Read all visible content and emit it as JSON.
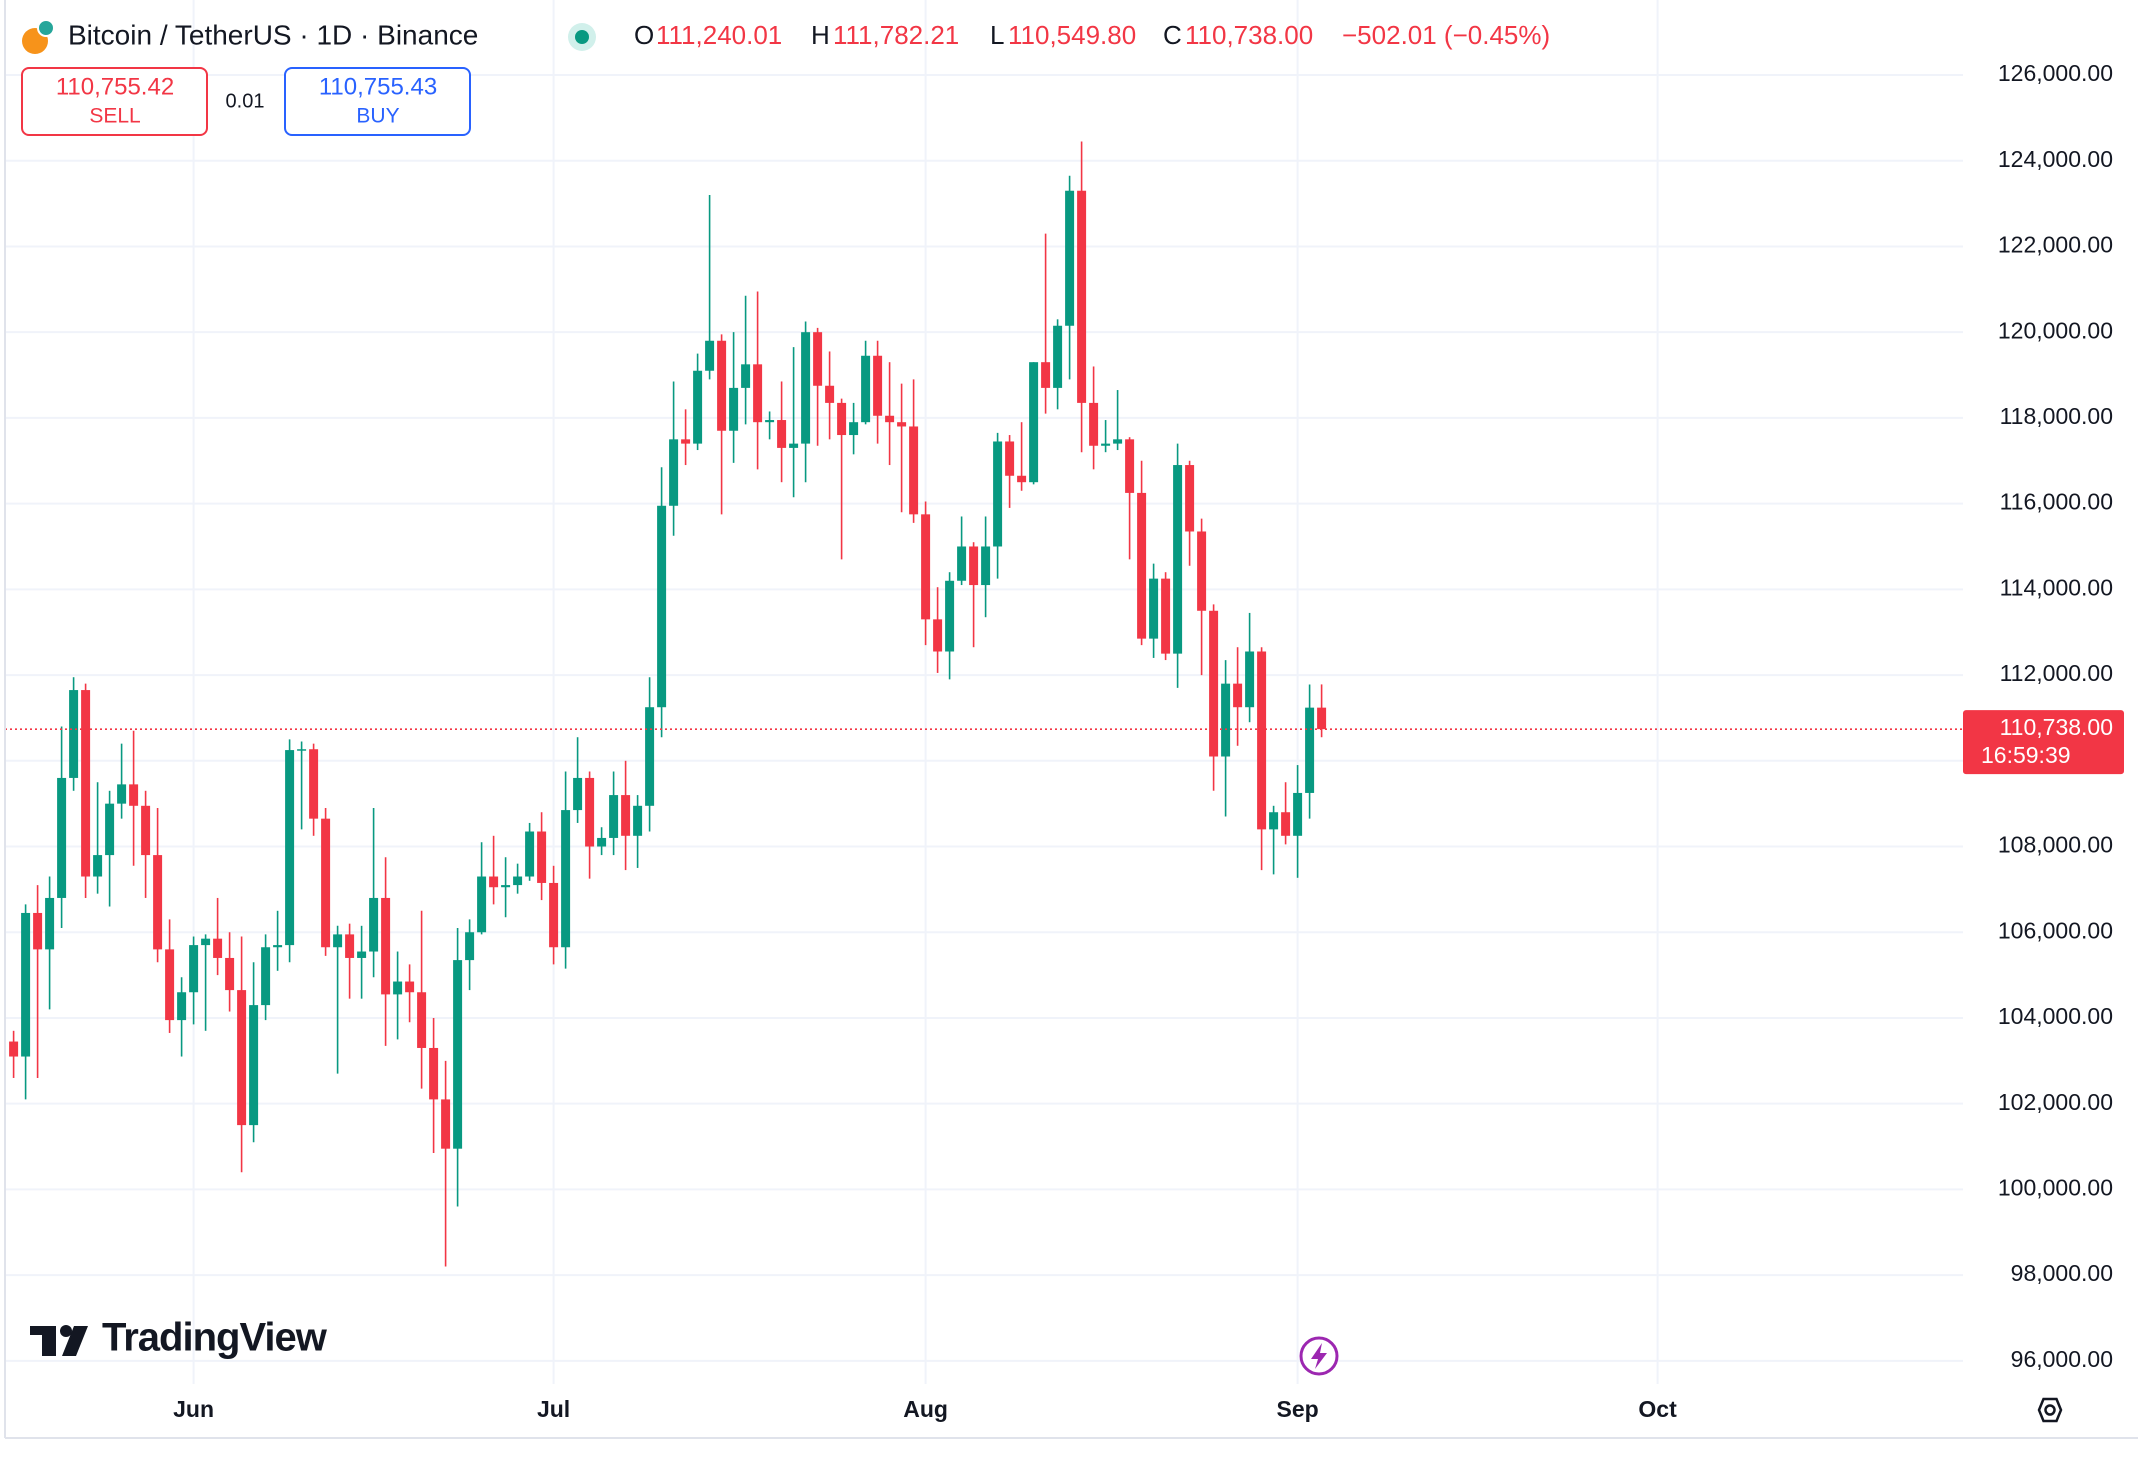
{
  "chart_data": {
    "type": "candlestick",
    "title": "Bitcoin / TetherUS · 1D · Binance",
    "ohlc_header": [
      {
        "label": "O",
        "value": "111,240.01"
      },
      {
        "label": "H",
        "value": "111,782.21"
      },
      {
        "label": "L",
        "value": "110,549.80"
      },
      {
        "label": "C",
        "value": "110,738.00"
      }
    ],
    "change": "−502.01 (−0.45%)",
    "sell": {
      "price": "110,755.42",
      "label": "SELL"
    },
    "spread": "0.01",
    "buy": {
      "price": "110,755.43",
      "label": "BUY"
    },
    "last_price": {
      "value": 110738,
      "label": "110,738.00"
    },
    "countdown": "16:59:39",
    "branding": "TradingView",
    "up_color": "#089981",
    "down_color": "#f23645",
    "grid": true,
    "categories": [
      null,
      null,
      null,
      null,
      null,
      null,
      null,
      null,
      null,
      null,
      null,
      null,
      null,
      null,
      null,
      "Jun",
      null,
      null,
      null,
      null,
      null,
      null,
      null,
      null,
      null,
      null,
      null,
      null,
      null,
      null,
      null,
      null,
      null,
      null,
      null,
      null,
      null,
      null,
      null,
      null,
      null,
      null,
      null,
      null,
      null,
      "Jul",
      null,
      null,
      null,
      null,
      null,
      null,
      null,
      null,
      null,
      null,
      null,
      null,
      null,
      null,
      null,
      null,
      null,
      null,
      null,
      null,
      null,
      null,
      null,
      null,
      null,
      null,
      null,
      null,
      null,
      null,
      "Aug",
      null,
      null,
      null,
      null,
      null,
      null,
      null,
      null,
      null,
      null,
      null,
      null,
      null,
      null,
      null,
      null,
      null,
      null,
      null,
      null,
      null,
      null,
      null,
      null,
      null,
      null,
      null,
      null,
      null,
      null,
      "Sep",
      null,
      null,
      null,
      null,
      null,
      null,
      null,
      null,
      null,
      null,
      null,
      null,
      null,
      null,
      null,
      null,
      null,
      null,
      null,
      null,
      null,
      null,
      null,
      null,
      null,
      null,
      null,
      null,
      null,
      "Oct",
      null,
      null,
      null,
      null,
      null,
      null,
      null,
      null,
      null,
      null,
      null,
      null,
      null,
      null,
      null,
      null,
      null,
      null,
      null,
      null,
      null,
      null,
      null,
      null,
      null
    ],
    "open": [
      103450,
      103100,
      106450,
      105600,
      106800,
      109600,
      111650,
      107300,
      107800,
      109000,
      109450,
      108950,
      107800,
      105600,
      103950,
      104600,
      105700,
      105850,
      105400,
      104650,
      101500,
      104300,
      105650,
      105700,
      110250,
      110270,
      108650,
      105650,
      105950,
      105400,
      105550,
      106800,
      104550,
      104850,
      104600,
      103300,
      102100,
      100950,
      105350,
      106000,
      107300,
      107050,
      107100,
      107300,
      108350,
      107150,
      105650,
      108850,
      109600,
      108000,
      108200,
      109200,
      108250,
      108950,
      111250,
      115950,
      117500,
      117400,
      119100,
      119800,
      117700,
      118700,
      119250,
      117900,
      117950,
      117300,
      117400,
      120000,
      118750,
      118350,
      117600,
      117900,
      119450,
      118050,
      117900,
      117800,
      115750,
      113300,
      112550,
      114200,
      115000,
      114100,
      115000,
      117450,
      116650,
      116500,
      119300,
      118700,
      120150,
      123300,
      118350,
      117350,
      117400,
      117500,
      116250,
      112850,
      114250,
      112500,
      116900,
      115350,
      113500,
      110100,
      111800,
      111250,
      112550,
      108400,
      108800,
      108250,
      109250,
      111240.01,
      null,
      null,
      null,
      null,
      null,
      null,
      null,
      null,
      null,
      null,
      null,
      null,
      null,
      null,
      null,
      null,
      null,
      null,
      null,
      null,
      null,
      null,
      null,
      null,
      null,
      null,
      null,
      null,
      null,
      null,
      null,
      null,
      null,
      null,
      null,
      null,
      null,
      null,
      null,
      null,
      null,
      null,
      null,
      null,
      null,
      null,
      null,
      null,
      null,
      null,
      null,
      null,
      null
    ],
    "high": [
      103700,
      106650,
      107100,
      107300,
      110800,
      111950,
      111800,
      109500,
      109300,
      110400,
      110700,
      109300,
      108900,
      106300,
      104950,
      105900,
      105950,
      106800,
      106000,
      105900,
      105300,
      105950,
      106500,
      110500,
      110450,
      110400,
      108900,
      106150,
      106200,
      106150,
      108900,
      107750,
      105550,
      105250,
      106500,
      104000,
      103000,
      106100,
      106300,
      108100,
      108250,
      107750,
      107600,
      108550,
      108800,
      107550,
      109750,
      110550,
      109750,
      108450,
      109750,
      110000,
      109200,
      111950,
      116850,
      118850,
      118200,
      119500,
      123200,
      119950,
      120000,
      120850,
      120950,
      118150,
      118850,
      119650,
      120250,
      120100,
      119550,
      118450,
      118350,
      119800,
      119800,
      119300,
      118800,
      118900,
      116050,
      114050,
      114400,
      115700,
      115100,
      115700,
      117650,
      117600,
      117900,
      119300,
      122300,
      120300,
      123650,
      124450,
      119200,
      117950,
      118650,
      117550,
      117000,
      114600,
      114400,
      117400,
      117000,
      115650,
      113650,
      112350,
      112650,
      113450,
      112650,
      108950,
      109500,
      109900,
      111780,
      111782.21,
      null,
      null,
      null,
      null,
      null,
      null,
      null,
      null,
      null,
      null,
      null,
      null,
      null,
      null,
      null,
      null,
      null,
      null,
      null,
      null,
      null,
      null,
      null,
      null,
      null,
      null,
      null,
      null,
      null,
      null,
      null,
      null,
      null,
      null,
      null,
      null,
      null,
      null,
      null,
      null,
      null,
      null,
      null,
      null,
      null,
      null,
      null,
      null,
      null,
      null,
      null,
      null,
      null
    ],
    "low": [
      102600,
      102100,
      102600,
      104200,
      106100,
      109300,
      106800,
      106900,
      106600,
      108650,
      107550,
      106800,
      105300,
      103650,
      103100,
      103850,
      103700,
      105000,
      104150,
      100400,
      101100,
      103950,
      105100,
      105300,
      108400,
      108250,
      105450,
      102700,
      104450,
      104450,
      104950,
      103350,
      103500,
      103900,
      102350,
      100850,
      98200,
      99600,
      104650,
      105950,
      106650,
      106350,
      106900,
      107200,
      106750,
      105250,
      105150,
      108550,
      107250,
      107800,
      107800,
      107450,
      107500,
      108350,
      110550,
      115250,
      116900,
      117250,
      118900,
      115750,
      116950,
      117850,
      116800,
      117500,
      116500,
      116150,
      116500,
      117350,
      117500,
      114700,
      117150,
      117850,
      117400,
      116900,
      115800,
      115550,
      112700,
      112050,
      111900,
      114100,
      112650,
      113350,
      114250,
      115900,
      116300,
      116450,
      118100,
      118200,
      118900,
      117200,
      116800,
      117200,
      117250,
      114700,
      112700,
      112400,
      112350,
      111700,
      114550,
      112000,
      109300,
      108700,
      110350,
      110900,
      107450,
      107350,
      108050,
      107270,
      108650,
      110549.8,
      null,
      null,
      null,
      null,
      null,
      null,
      null,
      null,
      null,
      null,
      null,
      null,
      null,
      null,
      null,
      null,
      null,
      null,
      null,
      null,
      null,
      null,
      null,
      null,
      null,
      null,
      null,
      null,
      null,
      null,
      null,
      null,
      null,
      null,
      null,
      null,
      null,
      null,
      null,
      null,
      null,
      null,
      null,
      null,
      null,
      null,
      null,
      null,
      null,
      null,
      null,
      null,
      null
    ],
    "close": [
      103100,
      106450,
      105600,
      106800,
      109600,
      111650,
      107300,
      107800,
      109000,
      109450,
      108950,
      107800,
      105600,
      103950,
      104600,
      105700,
      105850,
      105400,
      104650,
      101500,
      104300,
      105650,
      105700,
      110250,
      110270,
      108650,
      105650,
      105950,
      105400,
      105550,
      106800,
      104550,
      104850,
      104600,
      103300,
      102100,
      100950,
      105350,
      106000,
      107300,
      107050,
      107100,
      107300,
      108350,
      107150,
      105650,
      108850,
      109600,
      108000,
      108200,
      109200,
      108250,
      108950,
      111250,
      115950,
      117500,
      117400,
      119100,
      119800,
      117700,
      118700,
      119250,
      117900,
      117950,
      117300,
      117400,
      120000,
      118750,
      118350,
      117600,
      117900,
      119450,
      118050,
      117900,
      117800,
      115750,
      113300,
      112550,
      114200,
      115000,
      114100,
      115000,
      117450,
      116650,
      116500,
      119300,
      118700,
      120150,
      123300,
      118350,
      117350,
      117400,
      117500,
      116250,
      112850,
      114250,
      112500,
      116900,
      115350,
      113500,
      110100,
      111800,
      111250,
      112550,
      108400,
      108800,
      108250,
      109250,
      111240.01,
      110738,
      null,
      null,
      null,
      null,
      null,
      null,
      null,
      null,
      null,
      null,
      null,
      null,
      null,
      null,
      null,
      null,
      null,
      null,
      null,
      null,
      null,
      null,
      null,
      null,
      null,
      null,
      null,
      null,
      null,
      null,
      null,
      null,
      null,
      null,
      null,
      null,
      null,
      null,
      null,
      null,
      null,
      null,
      null,
      null,
      null,
      null,
      null,
      null,
      null,
      null,
      null,
      null,
      null
    ],
    "ylim": [
      95460,
      127750
    ],
    "yticks": [
      {
        "value": 96000,
        "label": "96,000.00"
      },
      {
        "value": 98000,
        "label": "98,000.00"
      },
      {
        "value": 100000,
        "label": "100,000.00"
      },
      {
        "value": 102000,
        "label": "102,000.00"
      },
      {
        "value": 104000,
        "label": "104,000.00"
      },
      {
        "value": 106000,
        "label": "106,000.00"
      },
      {
        "value": 108000,
        "label": "108,000.00"
      },
      {
        "value": 110000,
        "label": "110,000.00"
      },
      {
        "value": 112000,
        "label": "112,000.00"
      },
      {
        "value": 114000,
        "label": "114,000.00"
      },
      {
        "value": 116000,
        "label": "116,000.00"
      },
      {
        "value": 118000,
        "label": "118,000.00"
      },
      {
        "value": 120000,
        "label": "120,000.00"
      },
      {
        "value": 122000,
        "label": "122,000.00"
      },
      {
        "value": 124000,
        "label": "124,000.00"
      },
      {
        "value": 126000,
        "label": "126,000.00"
      }
    ]
  }
}
